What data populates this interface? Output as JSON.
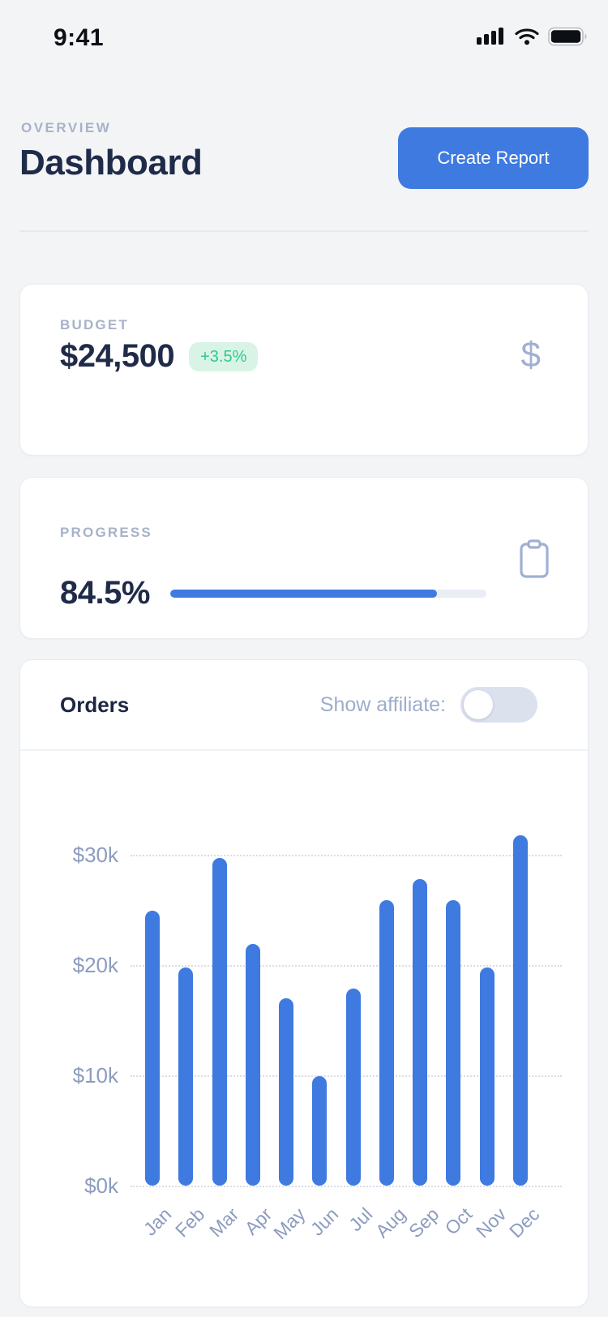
{
  "status_bar": {
    "time": "9:41"
  },
  "header": {
    "eyebrow": "OVERVIEW",
    "title": "Dashboard",
    "create_report": "Create Report"
  },
  "budget_card": {
    "label": "BUDGET",
    "value": "$24,500",
    "delta": "+3.5%",
    "icon_char": "$"
  },
  "progress_card": {
    "label": "PROGRESS",
    "value": "84.5%",
    "percent": 84.5
  },
  "orders_card": {
    "title": "Orders",
    "toggle_label": "Show affiliate:",
    "toggle_on": false
  },
  "chart_data": {
    "type": "bar",
    "title": "Orders",
    "categories": [
      "Jan",
      "Feb",
      "Mar",
      "Apr",
      "May",
      "Jun",
      "Jul",
      "Aug",
      "Sep",
      "Oct",
      "Nov",
      "Dec"
    ],
    "values": [
      24.9,
      19.8,
      29.7,
      21.9,
      17.0,
      9.9,
      17.9,
      25.9,
      27.8,
      25.9,
      19.8,
      31.8
    ],
    "unit": "thousand USD",
    "xlabel": "",
    "ylabel": "",
    "ytick_values": [
      0,
      10,
      20,
      30
    ],
    "ytick_labels": [
      "$0k",
      "$10k",
      "$20k",
      "$30k"
    ],
    "ylim": [
      0,
      33
    ],
    "grid": "horizontal-dotted",
    "legend": "none",
    "bar_color": "#3e7ae0"
  },
  "colors": {
    "page_bg": "#f3f4f6",
    "accent_blue": "#3e7ae0",
    "navy_text": "#1f2b49",
    "muted_label": "#a8b2c8",
    "axis_text": "#8d9cbe",
    "green_text": "#2fc98c",
    "green_bg": "#d9f4e6",
    "icon_blue": "#9fb0d4",
    "toggle_track": "#dce1ee",
    "progress_track": "#e9edf4",
    "gridline": "#d9dde6",
    "card_border": "#e9ecf1"
  }
}
